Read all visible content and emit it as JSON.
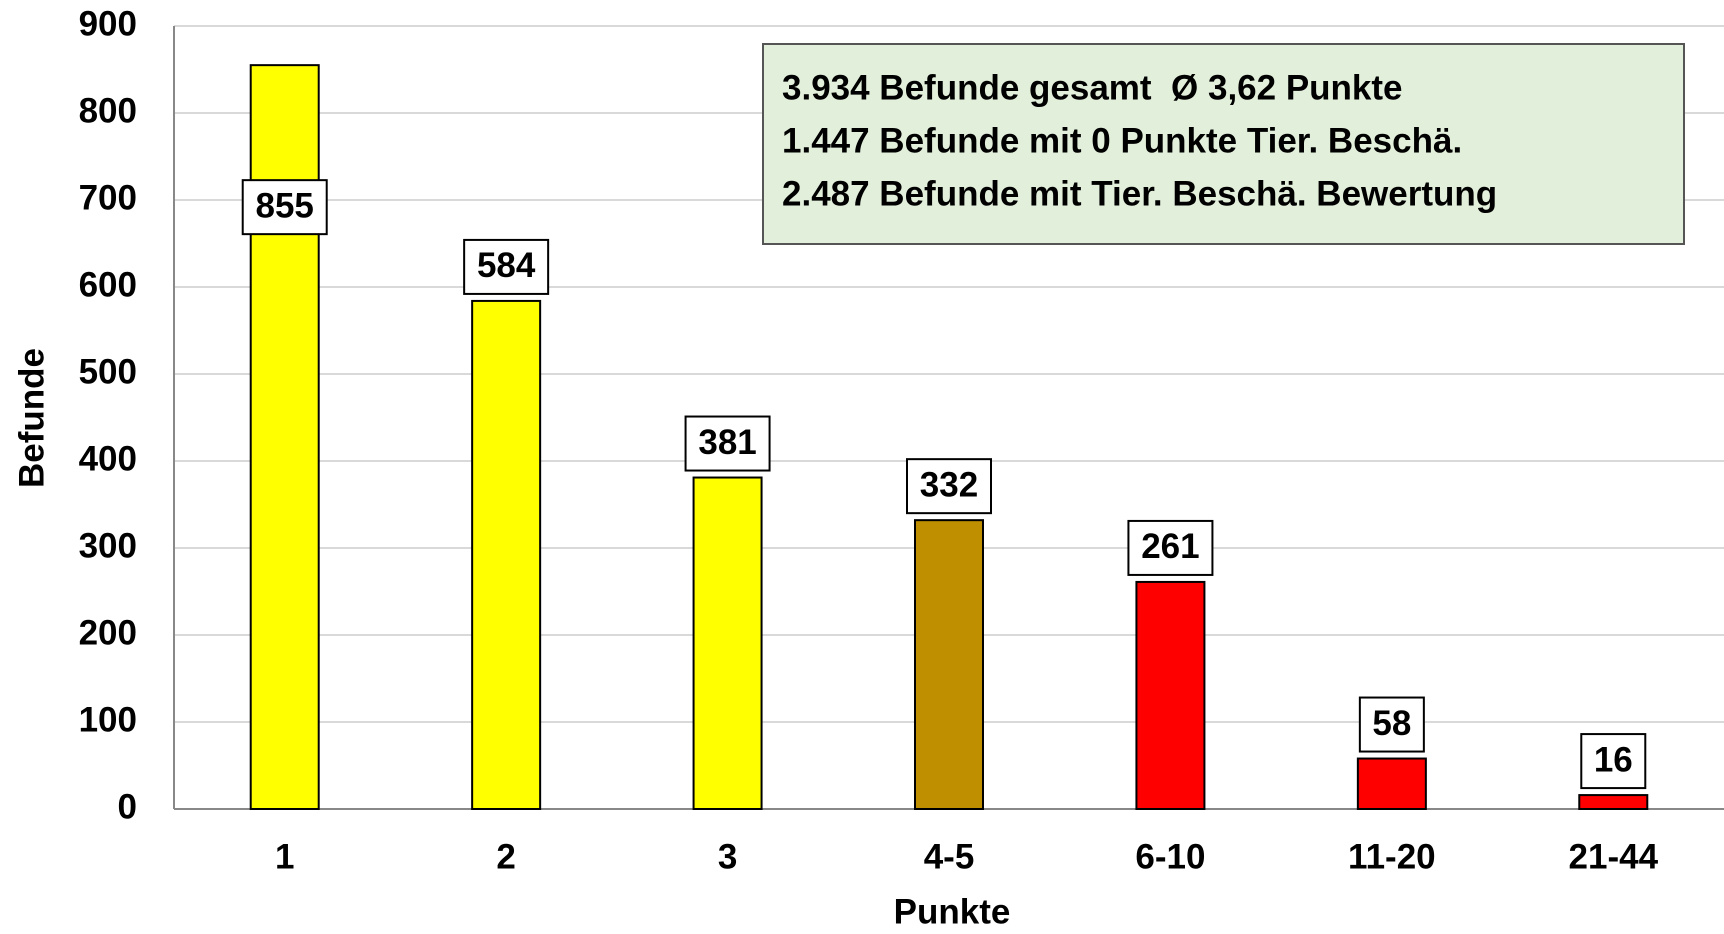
{
  "chart_data": {
    "type": "bar",
    "x_label": "Punkte",
    "y_label": "Befunde",
    "categories": [
      "1",
      "2",
      "3",
      "4-5",
      "6-10",
      "11-20",
      "21-44"
    ],
    "values": [
      855,
      584,
      381,
      332,
      261,
      58,
      16
    ],
    "colors": [
      "#ffff00",
      "#ffff00",
      "#ffff00",
      "#bf8f00",
      "#ff0000",
      "#ff0000",
      "#ff0000"
    ],
    "ylim": [
      0,
      900
    ],
    "yticks": [
      0,
      100,
      200,
      300,
      400,
      500,
      600,
      700,
      800,
      900
    ],
    "grid": true,
    "annotations": [
      "3.934 Befunde gesamt  Ø 3,62 Punkte",
      "1.447 Befunde mit 0 Punkte Tier. Beschä.",
      "2.487 Befunde mit Tier. Beschä. Bewertung"
    ]
  }
}
